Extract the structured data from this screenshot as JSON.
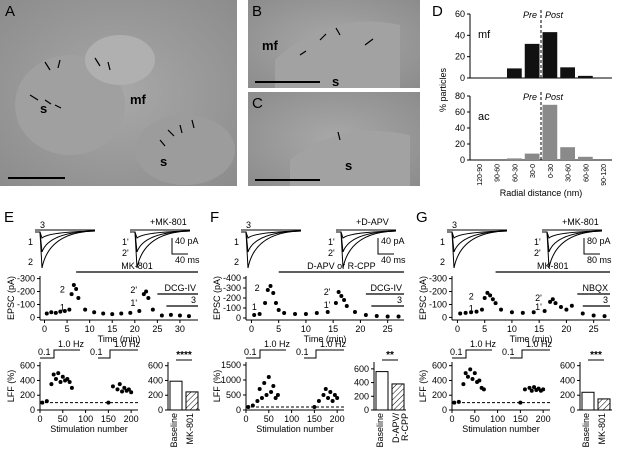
{
  "A": {
    "label": "A",
    "marks": [
      "s",
      "mf",
      "s"
    ]
  },
  "B": {
    "label": "B",
    "marks": [
      "mf",
      "s"
    ]
  },
  "C": {
    "label": "C",
    "marks": [
      "s"
    ]
  },
  "D": {
    "label": "D",
    "ylabel": "% particles",
    "xlabel": "Radial distance (nm)",
    "pre": "Pre",
    "post": "Post",
    "categories": [
      "120-90",
      "90-60",
      "60-30",
      "30-0",
      "0-30",
      "30-60",
      "60-90",
      "90-120"
    ],
    "charts": [
      {
        "name": "mf",
        "color": "#111111",
        "values": [
          0,
          0,
          9,
          32,
          43,
          10,
          2,
          0
        ],
        "ylim": [
          0,
          60
        ],
        "yticks": [
          0,
          20,
          40,
          60
        ]
      },
      {
        "name": "ac",
        "color": "#8a8a8a",
        "values": [
          0,
          0,
          2,
          8,
          69,
          16,
          4,
          0
        ],
        "ylim": [
          0,
          80
        ],
        "yticks": [
          0,
          20,
          40,
          60,
          80
        ]
      }
    ]
  },
  "experiments": [
    {
      "label": "E",
      "drug": "+MK-801",
      "left": [
        "3",
        "1",
        "2"
      ],
      "right": [
        "1'",
        "2'"
      ],
      "scale": [
        "40 pA",
        "40 ms"
      ],
      "timecourse": {
        "ylabel": "EPSC (pA)",
        "xlabel": "Time (min)",
        "xlim": [
          -1,
          34
        ],
        "ylim": [
          20,
          -320
        ],
        "xticks": [
          0,
          5,
          10,
          15,
          20,
          25,
          30
        ],
        "yticks": [
          0,
          -100,
          -200,
          -300
        ],
        "x": [
          0.5,
          1.5,
          2.5,
          3.5,
          4.5,
          5.5,
          6,
          6.5,
          7,
          7.5,
          9,
          11,
          13,
          15,
          17,
          19,
          21,
          22,
          22.5,
          23,
          24,
          26,
          28,
          30,
          32
        ],
        "y": [
          -30,
          -40,
          -35,
          -45,
          -50,
          -60,
          -180,
          -250,
          -220,
          -150,
          -60,
          -40,
          -30,
          -25,
          -30,
          -35,
          -50,
          -180,
          -200,
          -150,
          -60,
          -15,
          -20,
          -15,
          -10
        ],
        "applications": [
          {
            "name": "MK-801",
            "start": 7,
            "end": 34
          },
          {
            "name": "DCG-IV",
            "start": 25,
            "end": 34
          },
          {
            "name": "3",
            "start": 27,
            "end": 34
          }
        ],
        "annotations": [
          {
            "text": "1",
            "x": 4.5,
            "y": -75
          },
          {
            "text": "2",
            "x": 4.5,
            "y": -215
          },
          {
            "text": "2'",
            "x": 20.5,
            "y": -210
          },
          {
            "text": "1'",
            "x": 20.5,
            "y": -110
          }
        ]
      },
      "lff": {
        "ylabel": "LFF (%)",
        "xlabel": "Stimulation number",
        "xlim": [
          0,
          215
        ],
        "ylim": [
          0,
          650
        ],
        "xticks": [
          0,
          50,
          100,
          150,
          200
        ],
        "yticks": [
          0,
          200,
          400,
          600
        ],
        "reference": 100,
        "protocol": [
          "0.1",
          "1.0 Hz",
          "0.1",
          "1.0 Hz"
        ],
        "x": [
          5,
          15,
          25,
          30,
          35,
          40,
          45,
          50,
          55,
          60,
          65,
          70,
          150,
          160,
          170,
          175,
          180,
          185,
          190,
          195,
          200
        ],
        "y": [
          100,
          120,
          350,
          480,
          420,
          500,
          380,
          450,
          400,
          420,
          380,
          300,
          100,
          320,
          280,
          350,
          250,
          300,
          260,
          280,
          240
        ]
      },
      "summary": {
        "categories": [
          [
            "Baseline"
          ],
          [
            "MK-801"
          ]
        ],
        "values": [
          390,
          245
        ],
        "ylim": [
          0,
          650
        ],
        "yticks": [
          0,
          200,
          400,
          600
        ],
        "significance": "****"
      }
    },
    {
      "label": "F",
      "drug": "+D-APV",
      "left": [
        "3",
        "1",
        "2"
      ],
      "right": [
        "1'",
        "2'"
      ],
      "scale": [
        "40 pA",
        "40 ms"
      ],
      "timecourse": {
        "ylabel": "EPSC (pA)",
        "xlabel": "Time (min)",
        "xlim": [
          -1,
          28
        ],
        "ylim": [
          20,
          -420
        ],
        "xticks": [
          0,
          5,
          10,
          15,
          20,
          25
        ],
        "yticks": [
          0,
          -100,
          -200,
          -300,
          -400
        ],
        "x": [
          0.5,
          1.5,
          2.5,
          3,
          3.5,
          4,
          4.5,
          5,
          6,
          8,
          10,
          12,
          14,
          15.5,
          16,
          16.5,
          17,
          17.5,
          19,
          21,
          23,
          25,
          27
        ],
        "y": [
          -30,
          -40,
          -150,
          -280,
          -320,
          -250,
          -150,
          -80,
          -50,
          -40,
          -40,
          -50,
          -60,
          -150,
          -260,
          -220,
          -180,
          -120,
          -60,
          -30,
          -20,
          -15,
          -15
        ],
        "applications": [
          {
            "name": "D-APV or R-CPP",
            "start": 5,
            "end": 28
          },
          {
            "name": "DCG-IV",
            "start": 21,
            "end": 28
          },
          {
            "name": "3",
            "start": 22,
            "end": 28
          }
        ],
        "annotations": [
          {
            "text": "1",
            "x": 1,
            "y": -110
          },
          {
            "text": "2",
            "x": 1.5,
            "y": -300
          },
          {
            "text": "2'",
            "x": 14.5,
            "y": -260
          },
          {
            "text": "1'",
            "x": 14.5,
            "y": -130
          }
        ]
      },
      "lff": {
        "ylabel": "LFF (%)",
        "xlabel": "Stimulation number",
        "xlim": [
          0,
          215
        ],
        "ylim": [
          0,
          1600
        ],
        "xticks": [
          0,
          50,
          100,
          150,
          200
        ],
        "yticks": [
          0,
          500,
          1000,
          1500
        ],
        "reference": 100,
        "protocol": [
          "0.1",
          "1.0 Hz",
          "0.1",
          "1.0 Hz"
        ],
        "x": [
          5,
          15,
          25,
          30,
          35,
          40,
          45,
          50,
          55,
          60,
          65,
          70,
          150,
          160,
          170,
          175,
          180,
          185,
          190,
          195,
          200
        ],
        "y": [
          100,
          150,
          300,
          700,
          400,
          900,
          500,
          1100,
          600,
          800,
          400,
          500,
          100,
          300,
          500,
          700,
          400,
          600,
          300,
          500,
          400
        ]
      },
      "summary": {
        "categories": [
          [
            "Baseline"
          ],
          [
            "D-APV/",
            "R-CPP"
          ]
        ],
        "values": [
          560,
          380
        ],
        "ylim": [
          0,
          700
        ],
        "yticks": [
          0,
          200,
          400,
          600
        ],
        "significance": "**"
      }
    },
    {
      "label": "G",
      "drug": "+MK-801",
      "left": [
        "3",
        "1",
        "2"
      ],
      "right": [
        "1'",
        "2'"
      ],
      "scale": [
        "80 pA",
        "80 ms"
      ],
      "timecourse": {
        "ylabel": "EPSC (pA)",
        "xlabel": "Time (min)",
        "xlim": [
          -1,
          28
        ],
        "ylim": [
          20,
          -320
        ],
        "xticks": [
          0,
          5,
          10,
          15,
          20,
          25
        ],
        "yticks": [
          0,
          -100,
          -200,
          -300
        ],
        "x": [
          0.5,
          1.5,
          2.5,
          3.5,
          4.5,
          5,
          5.5,
          6,
          6.5,
          7,
          8,
          10,
          12,
          14,
          16,
          17,
          17.5,
          18,
          19,
          20,
          21,
          23,
          25,
          27
        ],
        "y": [
          -30,
          -35,
          -40,
          -45,
          -60,
          -150,
          -190,
          -170,
          -140,
          -110,
          -60,
          -40,
          -35,
          -40,
          -50,
          -120,
          -140,
          -110,
          -80,
          -60,
          -90,
          -30,
          -15,
          -10
        ],
        "applications": [
          {
            "name": "MK-801",
            "start": 7,
            "end": 28
          },
          {
            "name": "NBQX",
            "start": 22,
            "end": 28
          },
          {
            "name": "3",
            "start": 23,
            "end": 28
          }
        ],
        "annotations": [
          {
            "text": "2",
            "x": 3,
            "y": -160
          },
          {
            "text": "1",
            "x": 3,
            "y": -70
          },
          {
            "text": "2'",
            "x": 15.5,
            "y": -150
          },
          {
            "text": "1'",
            "x": 15.5,
            "y": -80
          }
        ]
      },
      "lff": {
        "ylabel": "LFF (%)",
        "xlabel": "Stimulation number",
        "xlim": [
          0,
          215
        ],
        "ylim": [
          0,
          650
        ],
        "xticks": [
          0,
          50,
          100,
          150,
          200
        ],
        "yticks": [
          0,
          200,
          400,
          600
        ],
        "reference": 100,
        "protocol": [
          "0.1",
          "1.0 Hz",
          "0.1",
          "1.0 Hz"
        ],
        "x": [
          5,
          15,
          25,
          30,
          35,
          40,
          45,
          50,
          55,
          60,
          65,
          70,
          150,
          160,
          170,
          175,
          180,
          185,
          190,
          195,
          200
        ],
        "y": [
          100,
          110,
          350,
          500,
          450,
          550,
          420,
          500,
          380,
          400,
          300,
          280,
          100,
          280,
          300,
          260,
          310,
          270,
          290,
          260,
          280
        ]
      },
      "summary": {
        "categories": [
          [
            "Baseline"
          ],
          [
            "MK-801"
          ]
        ],
        "values": [
          240,
          150
        ],
        "ylim": [
          0,
          650
        ],
        "yticks": [
          0,
          200,
          400,
          600
        ],
        "significance": "***"
      }
    }
  ]
}
